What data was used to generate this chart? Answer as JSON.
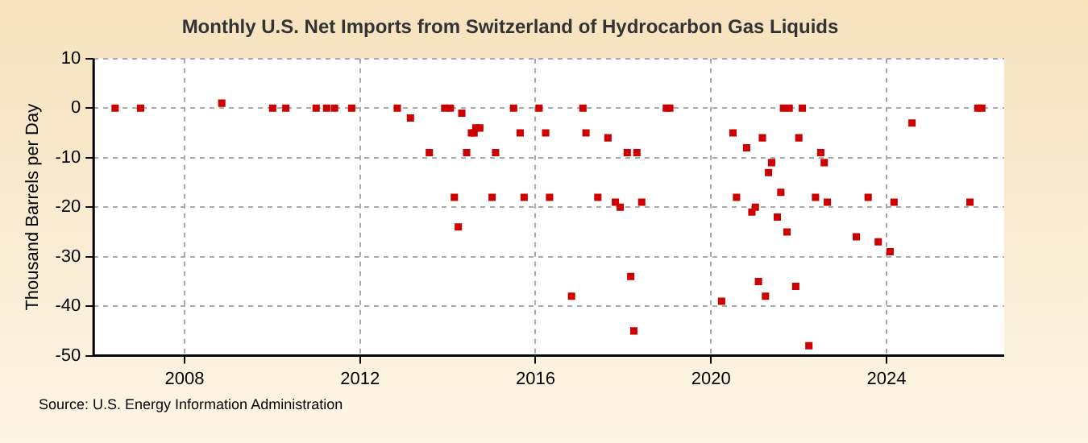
{
  "chart_data": {
    "type": "scatter",
    "title": "Monthly U.S. Net Imports from Switzerland of Hydrocarbon Gas Liquids",
    "ylabel": "Thousand Barrels per Day",
    "annotations": [
      "Source: U.S. Energy Information Administration"
    ],
    "x": [
      2006.42,
      2007.0,
      2008.85,
      2010.01,
      2010.31,
      2011.0,
      2011.24,
      2011.42,
      2011.81,
      2012.85,
      2013.15,
      2013.58,
      2013.93,
      2014.06,
      2014.15,
      2014.24,
      2014.32,
      2014.43,
      2014.54,
      2014.6,
      2014.64,
      2014.73,
      2015.01,
      2015.09,
      2015.5,
      2015.65,
      2015.74,
      2016.08,
      2016.23,
      2016.32,
      2016.82,
      2017.08,
      2017.15,
      2017.42,
      2017.65,
      2017.82,
      2017.93,
      2018.09,
      2018.17,
      2018.24,
      2018.31,
      2018.42,
      2018.98,
      2019.06,
      2020.24,
      2020.5,
      2020.58,
      2020.81,
      2020.93,
      2021.01,
      2021.08,
      2021.17,
      2021.24,
      2021.31,
      2021.38,
      2021.51,
      2021.59,
      2021.65,
      2021.73,
      2021.78,
      2021.93,
      2022.0,
      2022.08,
      2022.23,
      2022.38,
      2022.5,
      2022.58,
      2022.65,
      2023.31,
      2023.58,
      2023.81,
      2024.08,
      2024.17,
      2024.58,
      2025.9,
      2026.08,
      2026.17
    ],
    "series": [
      {
        "color": "#cc0000",
        "values": [
          0,
          0,
          1,
          0,
          0,
          0,
          0,
          0,
          0,
          0,
          -2,
          -9,
          0,
          0,
          -18,
          -24,
          -1,
          -9,
          -5,
          -5,
          -4,
          -4,
          -18,
          -9,
          0,
          -5,
          -18,
          0,
          -5,
          -18,
          -38,
          0,
          -5,
          -18,
          -6,
          -19,
          -20,
          -9,
          -34,
          -45,
          -9,
          -19,
          0,
          0,
          -39,
          -5,
          -18,
          -8,
          -21,
          -20,
          -35,
          -6,
          -38,
          -13,
          -11,
          -22,
          -17,
          0,
          -25,
          0,
          -36,
          -6,
          0,
          -48,
          -18,
          -9,
          -11,
          -19,
          -26,
          -18,
          -27,
          -29,
          -19,
          -3,
          -19,
          0,
          0
        ]
      }
    ],
    "xlim": [
      2005.93,
      2026.68
    ],
    "xticks": [
      2008,
      2012,
      2016,
      2020,
      2024
    ],
    "ylim": [
      -50,
      10
    ],
    "yticks": [
      -50,
      -40,
      -30,
      -20,
      -10,
      0,
      10
    ],
    "grid": true,
    "marker": "square",
    "legend": false
  }
}
